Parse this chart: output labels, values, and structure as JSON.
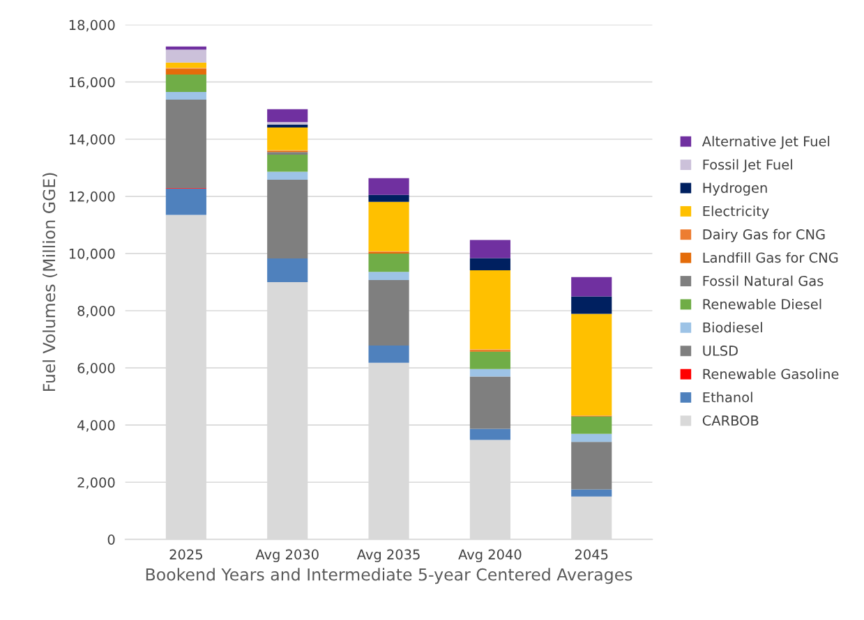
{
  "chart_data": {
    "type": "bar",
    "stacked": true,
    "xlabel": "Bookend Years and Intermediate 5-year Centered Averages",
    "ylabel": "Fuel Volumes (Million GGE)",
    "categories": [
      "2025",
      "Avg 2030",
      "Avg 2035",
      "Avg 2040",
      "2045"
    ],
    "series": [
      {
        "name": "CARBOB",
        "color": "#d9d9d9",
        "values": [
          11350,
          9000,
          6180,
          3480,
          1500
        ]
      },
      {
        "name": "Ethanol",
        "color": "#4f81bd",
        "values": [
          920,
          830,
          600,
          390,
          250
        ]
      },
      {
        "name": "Renewable Gasoline",
        "color": "#ff0000",
        "values": [
          20,
          null,
          null,
          null,
          null
        ]
      },
      {
        "name": "ULSD",
        "color": "#7f7f7f",
        "values": [
          3090,
          2750,
          2290,
          1830,
          1660
        ]
      },
      {
        "name": "Biodiesel",
        "color": "#9dc3e6",
        "values": [
          270,
          280,
          290,
          260,
          280
        ]
      },
      {
        "name": "Renewable Diesel",
        "color": "#70ad47",
        "values": [
          610,
          600,
          640,
          610,
          610
        ]
      },
      {
        "name": "Fossil Natural Gas",
        "color": "#7f7f7f",
        "values": [
          null,
          90,
          null,
          null,
          null
        ]
      },
      {
        "name": "Landfill Gas for CNG",
        "color": "#e46c0a",
        "values": [
          200,
          40,
          50,
          50,
          20
        ]
      },
      {
        "name": "Dairy Gas for CNG",
        "color": "#ed7d31",
        "values": [
          30,
          20,
          30,
          30,
          10
        ]
      },
      {
        "name": "Electricity",
        "color": "#ffc000",
        "values": [
          190,
          800,
          1730,
          2760,
          3560
        ]
      },
      {
        "name": "Hydrogen",
        "color": "#002060",
        "values": [
          null,
          100,
          240,
          430,
          610
        ]
      },
      {
        "name": "Fossil Jet Fuel",
        "color": "#ccc1da",
        "values": [
          450,
          90,
          null,
          null,
          null
        ]
      },
      {
        "name": "Alternative Jet Fuel",
        "color": "#7030a0",
        "values": [
          110,
          450,
          585,
          630,
          675
        ]
      }
    ],
    "ylim": [
      0,
      18000
    ],
    "yticks": [
      {
        "value": 0,
        "label": "0"
      },
      {
        "value": 2000,
        "label": "2,000"
      },
      {
        "value": 4000,
        "label": "4,000"
      },
      {
        "value": 6000,
        "label": "6,000"
      },
      {
        "value": 8000,
        "label": "8,000"
      },
      {
        "value": 10000,
        "label": "10,000"
      },
      {
        "value": 12000,
        "label": "12,000"
      },
      {
        "value": 14000,
        "label": "14,000"
      },
      {
        "value": 16000,
        "label": "16,000"
      },
      {
        "value": 18000,
        "label": "18,000"
      }
    ],
    "grid": "y",
    "legend": "right"
  }
}
